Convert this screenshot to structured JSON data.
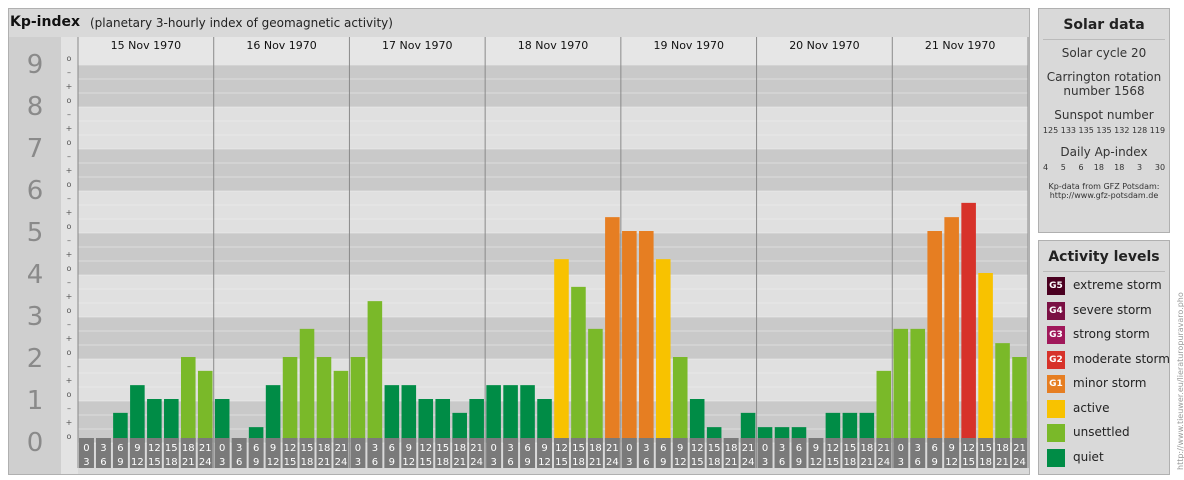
{
  "header": {
    "title": "Kp-index",
    "subtitle": "(planetary 3-hourly index of geomagnetic activity)"
  },
  "chart_data": {
    "type": "bar",
    "ylim": [
      0,
      9
    ],
    "y_ticks": [
      "0",
      "1",
      "2",
      "3",
      "4",
      "5",
      "6",
      "7",
      "8",
      "9"
    ],
    "sub_ticks": [
      "o",
      "+",
      "–"
    ],
    "days": [
      "15 Nov 1970",
      "16 Nov 1970",
      "17 Nov 1970",
      "18 Nov 1970",
      "19 Nov 1970",
      "20 Nov 1970",
      "21 Nov 1970"
    ],
    "intervals": [
      [
        "0",
        "3"
      ],
      [
        "3",
        "6"
      ],
      [
        "6",
        "9"
      ],
      [
        "9",
        "12"
      ],
      [
        "12",
        "15"
      ],
      [
        "15",
        "18"
      ],
      [
        "18",
        "21"
      ],
      [
        "21",
        "24"
      ]
    ],
    "values": [
      [
        0,
        0,
        0.67,
        1.33,
        1,
        1,
        2,
        1.67
      ],
      [
        1,
        0,
        0.33,
        1.33,
        2,
        2.67,
        2,
        1.67
      ],
      [
        2,
        3.33,
        1.33,
        1.33,
        1,
        1,
        0.67,
        1
      ],
      [
        1.33,
        1.33,
        1.33,
        1,
        4.33,
        3.67,
        2.67,
        5.33
      ],
      [
        5,
        5,
        4.33,
        2,
        1,
        0.33,
        0,
        0.67
      ],
      [
        0.33,
        0.33,
        0.33,
        0,
        0.67,
        0.67,
        0.67,
        1.67
      ],
      [
        2.67,
        2.67,
        5,
        5.33,
        5.67,
        4,
        2.33,
        2
      ]
    ],
    "colors": {
      "quiet": "#008c46",
      "unsettled": "#7ab929",
      "active": "#f8c200",
      "minor": "#e67e22",
      "moderate": "#d7322a",
      "strong": "#a0185a",
      "severe": "#7a1044",
      "extreme": "#4a0020"
    }
  },
  "solar": {
    "title": "Solar data",
    "cycle": "Solar cycle 20",
    "carrington1": "Carrington rotation",
    "carrington2": "number 1568",
    "sunspot_label": "Sunspot number",
    "sunspot_values": "125 133 135 135 132 128 119",
    "ap_label": "Daily Ap-index",
    "ap_values": "4     5     6    18    18     3     30",
    "source1": "Kp-data from GFZ Potsdam:",
    "source2": "http://www.gfz-potsdam.de"
  },
  "activity": {
    "title": "Activity levels",
    "levels": [
      {
        "badge": "G5",
        "label": "extreme storm",
        "color": "#4a0020"
      },
      {
        "badge": "G4",
        "label": "severe storm",
        "color": "#7a1044"
      },
      {
        "badge": "G3",
        "label": "strong storm",
        "color": "#a0185a"
      },
      {
        "badge": "G2",
        "label": "moderate storm",
        "color": "#d7322a"
      },
      {
        "badge": "G1",
        "label": "minor storm",
        "color": "#e67e22"
      },
      {
        "badge": "",
        "label": "active",
        "color": "#f8c200"
      },
      {
        "badge": "",
        "label": "unsettled",
        "color": "#7ab929"
      },
      {
        "badge": "",
        "label": "quiet",
        "color": "#008c46"
      }
    ]
  },
  "credit": "http://www.tieuwer.eu/lieraturopuravaro.pho"
}
